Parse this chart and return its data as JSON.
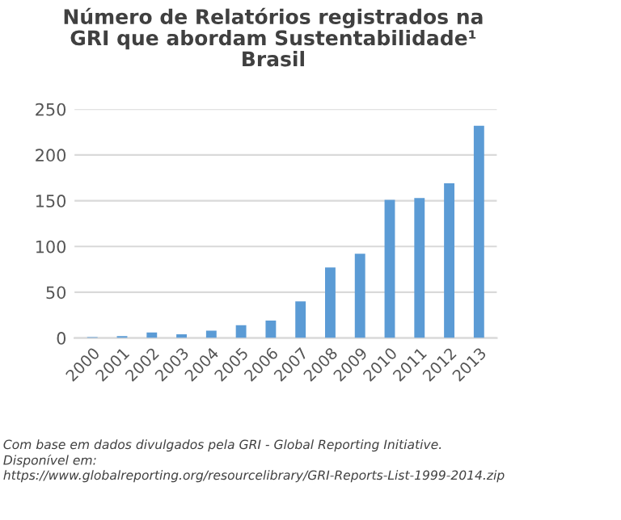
{
  "chart_data": {
    "type": "bar",
    "title": "Número de Relatórios registrados na\nGRI que abordam Sustentabilidade¹\nBrasil",
    "categories": [
      "2000",
      "2001",
      "2002",
      "2003",
      "2004",
      "2005",
      "2006",
      "2007",
      "2008",
      "2009",
      "2010",
      "2011",
      "2012",
      "2013"
    ],
    "values": [
      1,
      2,
      6,
      4,
      8,
      14,
      19,
      40,
      77,
      92,
      151,
      153,
      169,
      232
    ],
    "color": "#5b9bd5",
    "ylim": [
      0,
      250
    ],
    "yticks": [
      0,
      50,
      100,
      150,
      200,
      250
    ],
    "grid": "y",
    "legend": false,
    "annotations": [
      "Com base em dados divulgados pela GRI - Global Reporting Initiative.\nDisponível em:\nhttps://www.globalreporting.org/resourcelibrary/GRI-Reports-List-1999-2014.zip"
    ]
  }
}
